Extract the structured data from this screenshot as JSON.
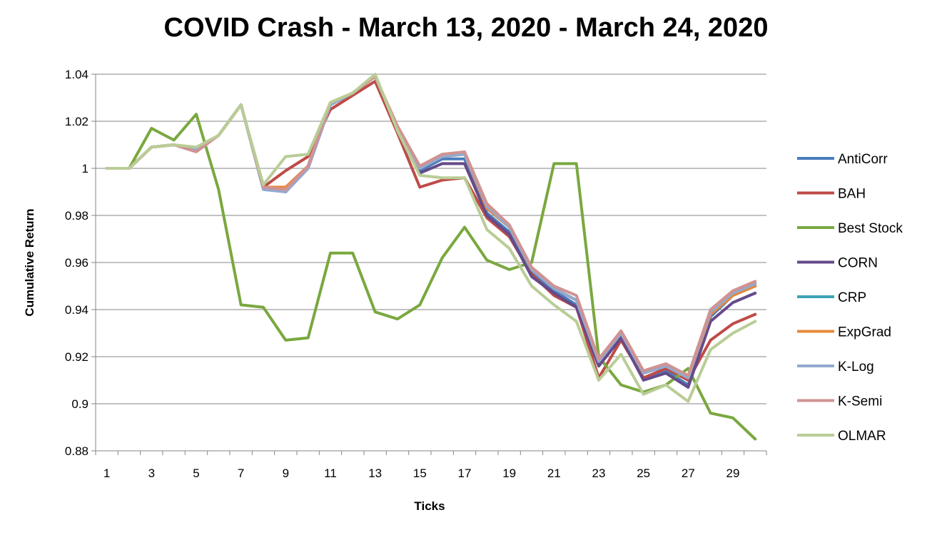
{
  "chart_data": {
    "type": "line",
    "title": "COVID Crash - March 13, 2020 - March 24, 2020",
    "xlabel": "Ticks",
    "ylabel": "Cumulative Return",
    "x": [
      1,
      2,
      3,
      4,
      5,
      6,
      7,
      8,
      9,
      10,
      11,
      12,
      13,
      14,
      15,
      16,
      17,
      18,
      19,
      20,
      21,
      22,
      23,
      24,
      25,
      26,
      27,
      28,
      29,
      30
    ],
    "x_tick_labels": [
      "1",
      "3",
      "5",
      "7",
      "9",
      "11",
      "13",
      "15",
      "17",
      "19",
      "21",
      "23",
      "25",
      "27",
      "29"
    ],
    "y_tick_labels": [
      "0.88",
      "0.9",
      "0.92",
      "0.94",
      "0.96",
      "0.98",
      "1",
      "1.02",
      "1.04"
    ],
    "ylim": [
      0.88,
      1.04
    ],
    "grid": "horizontal",
    "legend_position": "right",
    "series": [
      {
        "name": "AntiCorr",
        "color": "#4a7ebb",
        "values": [
          1.0,
          1.0,
          1.009,
          1.01,
          1.008,
          1.014,
          1.027,
          0.992,
          0.991,
          1.001,
          1.027,
          1.032,
          1.039,
          1.017,
          0.999,
          1.004,
          1.004,
          0.981,
          0.973,
          0.956,
          0.948,
          0.942,
          0.917,
          0.929,
          0.911,
          0.914,
          0.908,
          0.937,
          0.946,
          0.95
        ]
      },
      {
        "name": "BAH",
        "color": "#be4b48",
        "values": [
          1.0,
          1.0,
          1.009,
          1.01,
          1.008,
          1.014,
          1.027,
          0.992,
          0.999,
          1.005,
          1.025,
          1.031,
          1.037,
          1.015,
          0.992,
          0.995,
          0.996,
          0.979,
          0.971,
          0.955,
          0.946,
          0.941,
          0.911,
          0.927,
          0.911,
          0.915,
          0.91,
          0.927,
          0.934,
          0.938
        ]
      },
      {
        "name": "Best Stock",
        "color": "#7aa83f",
        "values": [
          1.0,
          1.0,
          1.017,
          1.012,
          1.023,
          0.991,
          0.942,
          0.941,
          0.927,
          0.928,
          0.964,
          0.964,
          0.939,
          0.936,
          0.942,
          0.962,
          0.975,
          0.961,
          0.957,
          0.96,
          1.002,
          1.002,
          0.92,
          0.908,
          0.905,
          0.908,
          0.915,
          0.896,
          0.894,
          0.885
        ]
      },
      {
        "name": "CORN",
        "color": "#654a8a",
        "values": [
          1.0,
          1.0,
          1.009,
          1.01,
          1.008,
          1.014,
          1.027,
          0.992,
          0.99,
          1.0,
          1.027,
          1.032,
          1.039,
          1.017,
          0.998,
          1.002,
          1.002,
          0.98,
          0.972,
          0.954,
          0.947,
          0.941,
          0.916,
          0.928,
          0.91,
          0.913,
          0.907,
          0.935,
          0.943,
          0.947
        ]
      },
      {
        "name": "CRP",
        "color": "#3fa2b8",
        "values": [
          1.0,
          1.0,
          1.009,
          1.01,
          1.008,
          1.014,
          1.027,
          0.992,
          0.991,
          1.001,
          1.027,
          1.032,
          1.039,
          1.017,
          1.0,
          1.005,
          1.006,
          0.983,
          0.975,
          0.957,
          0.949,
          0.944,
          0.918,
          0.93,
          0.913,
          0.916,
          0.911,
          0.939,
          0.947,
          0.951
        ]
      },
      {
        "name": "ExpGrad",
        "color": "#e8893a",
        "values": [
          1.0,
          1.0,
          1.009,
          1.01,
          1.008,
          1.014,
          1.027,
          0.992,
          0.992,
          1.001,
          1.027,
          1.032,
          1.039,
          1.017,
          1.0,
          1.005,
          1.006,
          0.983,
          0.975,
          0.957,
          0.949,
          0.944,
          0.918,
          0.93,
          0.913,
          0.916,
          0.911,
          0.938,
          0.946,
          0.95
        ]
      },
      {
        "name": "K-Log",
        "color": "#93a9cf",
        "values": [
          1.0,
          1.0,
          1.009,
          1.01,
          1.008,
          1.014,
          1.027,
          0.991,
          0.99,
          1.0,
          1.027,
          1.032,
          1.039,
          1.017,
          1.0,
          1.005,
          1.006,
          0.984,
          0.975,
          0.957,
          0.949,
          0.944,
          0.918,
          0.93,
          0.913,
          0.916,
          0.911,
          0.939,
          0.947,
          0.951
        ]
      },
      {
        "name": "K-Semi",
        "color": "#d09392",
        "values": [
          1.0,
          1.0,
          1.009,
          1.01,
          1.007,
          1.014,
          1.027,
          0.992,
          0.991,
          1.001,
          1.028,
          1.032,
          1.039,
          1.018,
          1.001,
          1.006,
          1.007,
          0.985,
          0.976,
          0.958,
          0.95,
          0.946,
          0.919,
          0.931,
          0.914,
          0.917,
          0.912,
          0.94,
          0.948,
          0.952
        ]
      },
      {
        "name": "OLMAR",
        "color": "#b9cd96",
        "values": [
          1.0,
          1.0,
          1.009,
          1.01,
          1.009,
          1.014,
          1.027,
          0.993,
          1.005,
          1.006,
          1.028,
          1.032,
          1.04,
          1.016,
          0.997,
          0.996,
          0.996,
          0.974,
          0.966,
          0.95,
          0.942,
          0.935,
          0.91,
          0.921,
          0.904,
          0.908,
          0.901,
          0.923,
          0.93,
          0.935
        ]
      }
    ]
  }
}
